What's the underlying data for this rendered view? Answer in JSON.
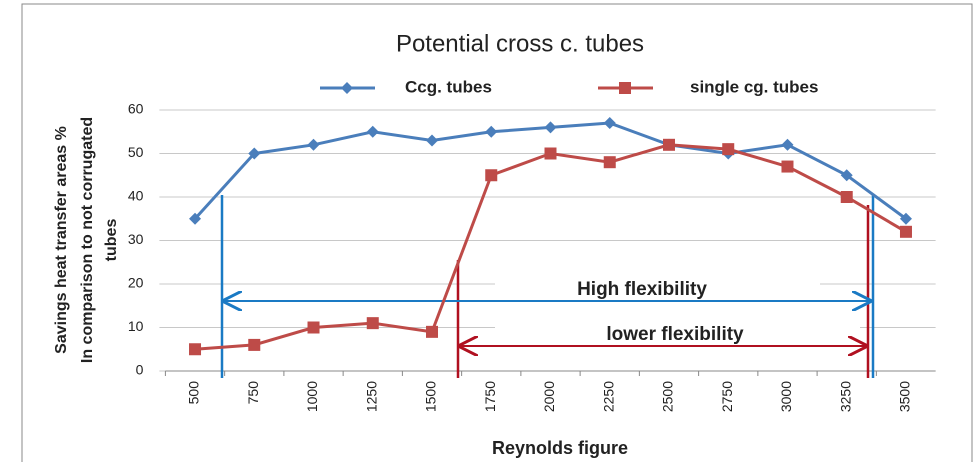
{
  "chart_data": {
    "type": "line",
    "title": "Potential cross c. tubes",
    "ylabel": [
      "Savings heat transfer areas %",
      "In comparison to not corrugated",
      "tubes"
    ],
    "xlabel": "Reynolds figure",
    "categories": [
      "500",
      "750",
      "1000",
      "1250",
      "1500",
      "1750",
      "2000",
      "2250",
      "2500",
      "2750",
      "3000",
      "3250",
      "3500"
    ],
    "series": [
      {
        "name": "Ccg. tubes",
        "color": "#4a7ebb",
        "marker": "diamond",
        "values": [
          35,
          50,
          52,
          55,
          53,
          55,
          56,
          57,
          52,
          50,
          52,
          45,
          35
        ]
      },
      {
        "name": "single cg. tubes",
        "color": "#be4b48",
        "marker": "square",
        "values": [
          5,
          6,
          10,
          11,
          9,
          45,
          50,
          48,
          52,
          51,
          47,
          40,
          32
        ]
      }
    ],
    "ylim": [
      0,
      60
    ],
    "yticks": [
      0,
      10,
      20,
      30,
      40,
      50,
      60
    ],
    "grid": true,
    "annotations": [
      "High flexibility",
      "lower flexibility"
    ]
  }
}
